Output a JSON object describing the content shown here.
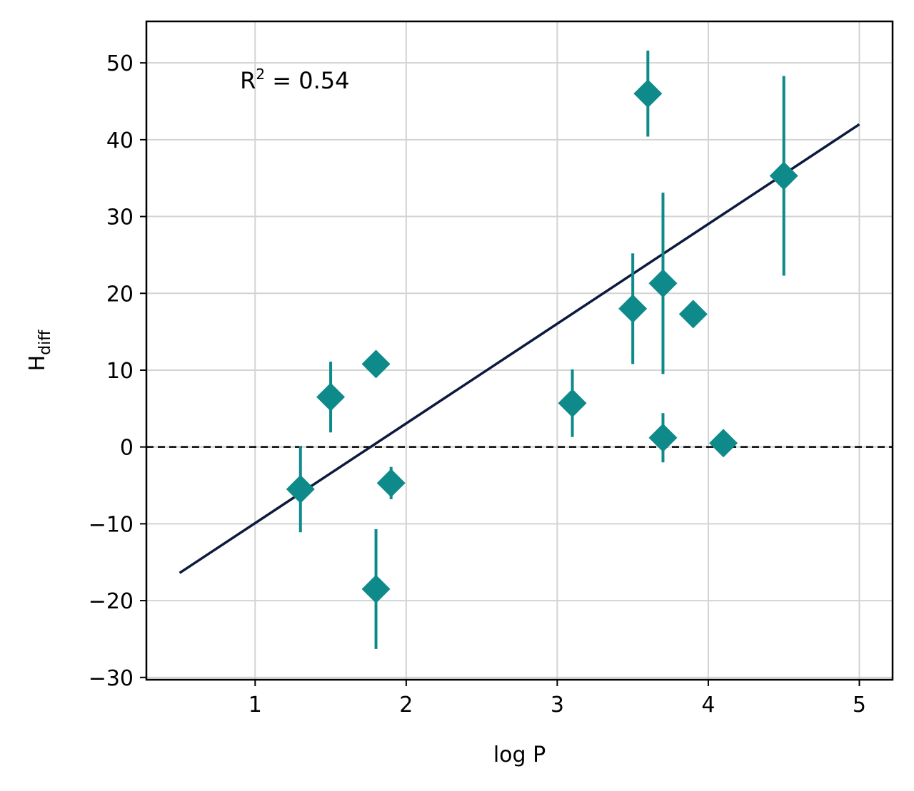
{
  "chart_data": {
    "type": "scatter",
    "xlabel": "log P",
    "ylabel_main": "H",
    "ylabel_sub": "diff",
    "xlim": [
      0.28,
      5.22
    ],
    "ylim": [
      -30.3,
      55.4
    ],
    "xticks": [
      1,
      2,
      3,
      4,
      5
    ],
    "yticks": [
      -30,
      -20,
      -10,
      0,
      10,
      20,
      30,
      40,
      50
    ],
    "ytick_labels": [
      "−30",
      "−20",
      "−10",
      "0",
      "10",
      "20",
      "30",
      "40",
      "50"
    ],
    "grid": true,
    "annotation": {
      "main": "R",
      "sup": "2",
      "rest": " = 0.54"
    },
    "points": [
      {
        "x": 1.3,
        "y": -5.5,
        "err": 5.6
      },
      {
        "x": 1.5,
        "y": 6.5,
        "err": 4.6
      },
      {
        "x": 1.8,
        "y": 10.8,
        "err": 0
      },
      {
        "x": 1.8,
        "y": -18.5,
        "err": 7.8
      },
      {
        "x": 1.9,
        "y": -4.7,
        "err": 2.1
      },
      {
        "x": 3.1,
        "y": 5.7,
        "err": 4.4
      },
      {
        "x": 3.5,
        "y": 18.0,
        "err": 7.2
      },
      {
        "x": 3.6,
        "y": 46.0,
        "err": 5.6
      },
      {
        "x": 3.7,
        "y": 21.3,
        "err": 11.8
      },
      {
        "x": 3.7,
        "y": 1.2,
        "err": 3.2
      },
      {
        "x": 3.9,
        "y": 17.3,
        "err": 0
      },
      {
        "x": 4.1,
        "y": 0.5,
        "err": 0
      },
      {
        "x": 4.5,
        "y": 35.3,
        "err": 13.0
      }
    ],
    "fit_line": {
      "x": [
        0.5,
        5.0
      ],
      "y": [
        -16.4,
        42.0
      ]
    },
    "reference_line": {
      "y": 0,
      "style": "dashed"
    },
    "colors": {
      "points": "#0f8a8a",
      "fit": "#0b1a3d",
      "grid": "#d3d3d3",
      "reference": "#000000"
    }
  }
}
